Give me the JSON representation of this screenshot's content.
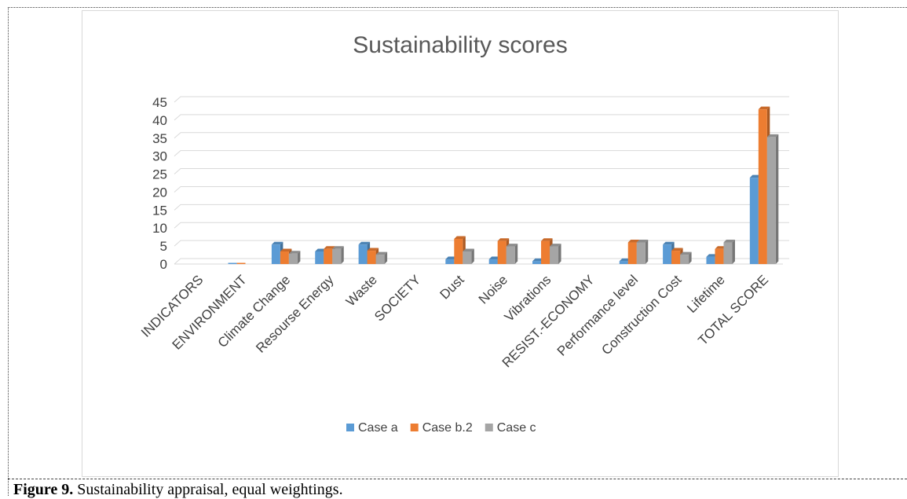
{
  "caption": {
    "label": "Figure 9.",
    "text": " Sustainability appraisal, equal weightings."
  },
  "chart_data": {
    "type": "bar",
    "title": "Sustainability scores",
    "categories": [
      "INDICATORS",
      "ENVIRONMENT",
      "Climate Change",
      "Resourse Energy",
      "Waste",
      "SOCIETY",
      "Dust",
      "Noise",
      "Vibrations",
      "RESIST.-ECONOMY",
      "Performance level",
      "Construction Cost",
      "Lifetime",
      "TOTAL SCORE"
    ],
    "series": [
      {
        "name": "Case a",
        "color": "#5b9bd5",
        "values": [
          0,
          0,
          5.4,
          3.5,
          5.4,
          0,
          1.3,
          1.3,
          0.8,
          0,
          0.8,
          5.4,
          2.0,
          24.0
        ]
      },
      {
        "name": "Case b.2",
        "color": "#ed7d31",
        "values": [
          0,
          0,
          3.5,
          4.2,
          3.7,
          0,
          7.0,
          6.4,
          6.4,
          0,
          6.0,
          3.7,
          4.2,
          43.0
        ]
      },
      {
        "name": "Case c",
        "color": "#a5a5a5",
        "values": [
          0,
          0,
          2.9,
          4.2,
          2.6,
          0,
          3.5,
          4.9,
          4.9,
          0,
          6.0,
          2.6,
          6.0,
          35.3
        ]
      }
    ],
    "yticks": [
      0,
      5,
      10,
      15,
      20,
      25,
      30,
      35,
      40,
      45
    ],
    "ylim": [
      0,
      45
    ],
    "grid": true,
    "legend_position": "bottom"
  }
}
